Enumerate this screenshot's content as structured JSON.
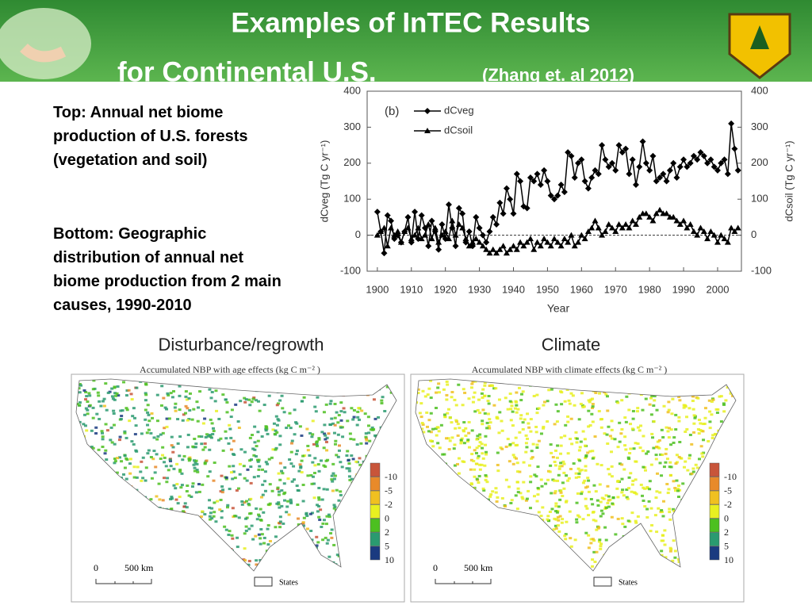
{
  "header": {
    "title_line1": "Examples of InTEC Results",
    "title_line2": "for Continental U.S.",
    "citation": "(Zhang et. al 2012)"
  },
  "text": {
    "top": "Top: Annual net biome production of U.S. forests (vegetation and soil)",
    "bottom": "Bottom: Geographic distribution of annual net biome production from 2 main causes, 1990-2010"
  },
  "chart_data": {
    "type": "line",
    "panel_label": "(b)",
    "xlabel": "Year",
    "ylabel": "dCveg (Tg C yr⁻¹)",
    "y2label": "dCsoil (Tg C yr⁻¹)",
    "x": [
      1900,
      1901,
      1902,
      1903,
      1904,
      1905,
      1906,
      1907,
      1908,
      1909,
      1910,
      1911,
      1912,
      1913,
      1914,
      1915,
      1916,
      1917,
      1918,
      1919,
      1920,
      1921,
      1922,
      1923,
      1924,
      1925,
      1926,
      1927,
      1928,
      1929,
      1930,
      1931,
      1932,
      1933,
      1934,
      1935,
      1936,
      1937,
      1938,
      1939,
      1940,
      1941,
      1942,
      1943,
      1944,
      1945,
      1946,
      1947,
      1948,
      1949,
      1950,
      1951,
      1952,
      1953,
      1954,
      1955,
      1956,
      1957,
      1958,
      1959,
      1960,
      1961,
      1962,
      1963,
      1964,
      1965,
      1966,
      1967,
      1968,
      1969,
      1970,
      1971,
      1972,
      1973,
      1974,
      1975,
      1976,
      1977,
      1978,
      1979,
      1980,
      1981,
      1982,
      1983,
      1984,
      1985,
      1986,
      1987,
      1988,
      1989,
      1990,
      1991,
      1992,
      1993,
      1994,
      1995,
      1996,
      1997,
      1998,
      1999,
      2000,
      2001,
      2002,
      2003,
      2004,
      2005,
      2006
    ],
    "series": [
      {
        "name": "dCveg",
        "color": "#000000",
        "marker": "diamond",
        "values": [
          65,
          10,
          -50,
          55,
          40,
          -10,
          0,
          -20,
          10,
          50,
          -20,
          65,
          -10,
          55,
          20,
          -30,
          40,
          10,
          -40,
          30,
          -10,
          85,
          20,
          -30,
          75,
          60,
          -20,
          10,
          -30,
          50,
          20,
          0,
          -20,
          10,
          50,
          30,
          90,
          60,
          130,
          100,
          60,
          170,
          150,
          80,
          75,
          160,
          150,
          170,
          140,
          180,
          150,
          110,
          100,
          110,
          140,
          120,
          230,
          220,
          160,
          200,
          210,
          150,
          130,
          160,
          180,
          170,
          250,
          210,
          190,
          200,
          180,
          250,
          230,
          240,
          170,
          210,
          140,
          190,
          260,
          200,
          180,
          220,
          150,
          160,
          170,
          150,
          180,
          200,
          160,
          190,
          210,
          190,
          200,
          220,
          210,
          230,
          220,
          200,
          210,
          190,
          180,
          200,
          210,
          170,
          310,
          240,
          180
        ]
      },
      {
        "name": "dCsoil",
        "color": "#000000",
        "marker": "triangle",
        "axis": "y2",
        "values": [
          0,
          10,
          20,
          -30,
          20,
          0,
          10,
          -20,
          10,
          20,
          -10,
          0,
          20,
          -10,
          0,
          30,
          -10,
          20,
          -20,
          0,
          10,
          -10,
          40,
          0,
          30,
          20,
          -10,
          -30,
          -20,
          -10,
          -20,
          -30,
          -40,
          -50,
          -40,
          -50,
          -40,
          -30,
          -50,
          -40,
          -30,
          -40,
          -20,
          -30,
          -20,
          -10,
          -40,
          -20,
          -30,
          -10,
          -20,
          -30,
          -10,
          -20,
          -30,
          -10,
          -20,
          0,
          -30,
          -20,
          0,
          -10,
          10,
          20,
          40,
          20,
          0,
          10,
          30,
          20,
          10,
          30,
          20,
          30,
          20,
          40,
          30,
          50,
          60,
          60,
          50,
          40,
          60,
          70,
          60,
          60,
          50,
          50,
          40,
          30,
          40,
          20,
          30,
          10,
          0,
          20,
          10,
          -10,
          10,
          0,
          -20,
          0,
          -10,
          -20,
          20,
          10,
          20
        ]
      }
    ],
    "xlim": [
      1897,
      2007
    ],
    "xticks": [
      1900,
      1910,
      1920,
      1930,
      1940,
      1950,
      1960,
      1970,
      1980,
      1990,
      2000
    ],
    "ylim": [
      -100,
      400
    ],
    "yticks": [
      -100,
      0,
      100,
      200,
      300,
      400
    ],
    "y2lim": [
      -100,
      400
    ],
    "y2ticks": [
      -100,
      0,
      100,
      200,
      300,
      400
    ]
  },
  "maps": [
    {
      "heading": "Disturbance/regrowth",
      "title": "Accumulated NBP with age effects (kg C m⁻² )"
    },
    {
      "heading": "Climate",
      "title": "Accumulated NBP with climate effects (kg C m⁻² )"
    }
  ],
  "map_legend": {
    "labels": [
      "-10",
      "-5",
      "-2",
      "0",
      "2",
      "5",
      "10"
    ],
    "colors": [
      "#c8553a",
      "#e88a2a",
      "#f0c020",
      "#e8f020",
      "#4cc020",
      "#2a9a70",
      "#1a3a80"
    ]
  },
  "scale": {
    "start": "0",
    "end": "500 km"
  },
  "states_label": "States"
}
